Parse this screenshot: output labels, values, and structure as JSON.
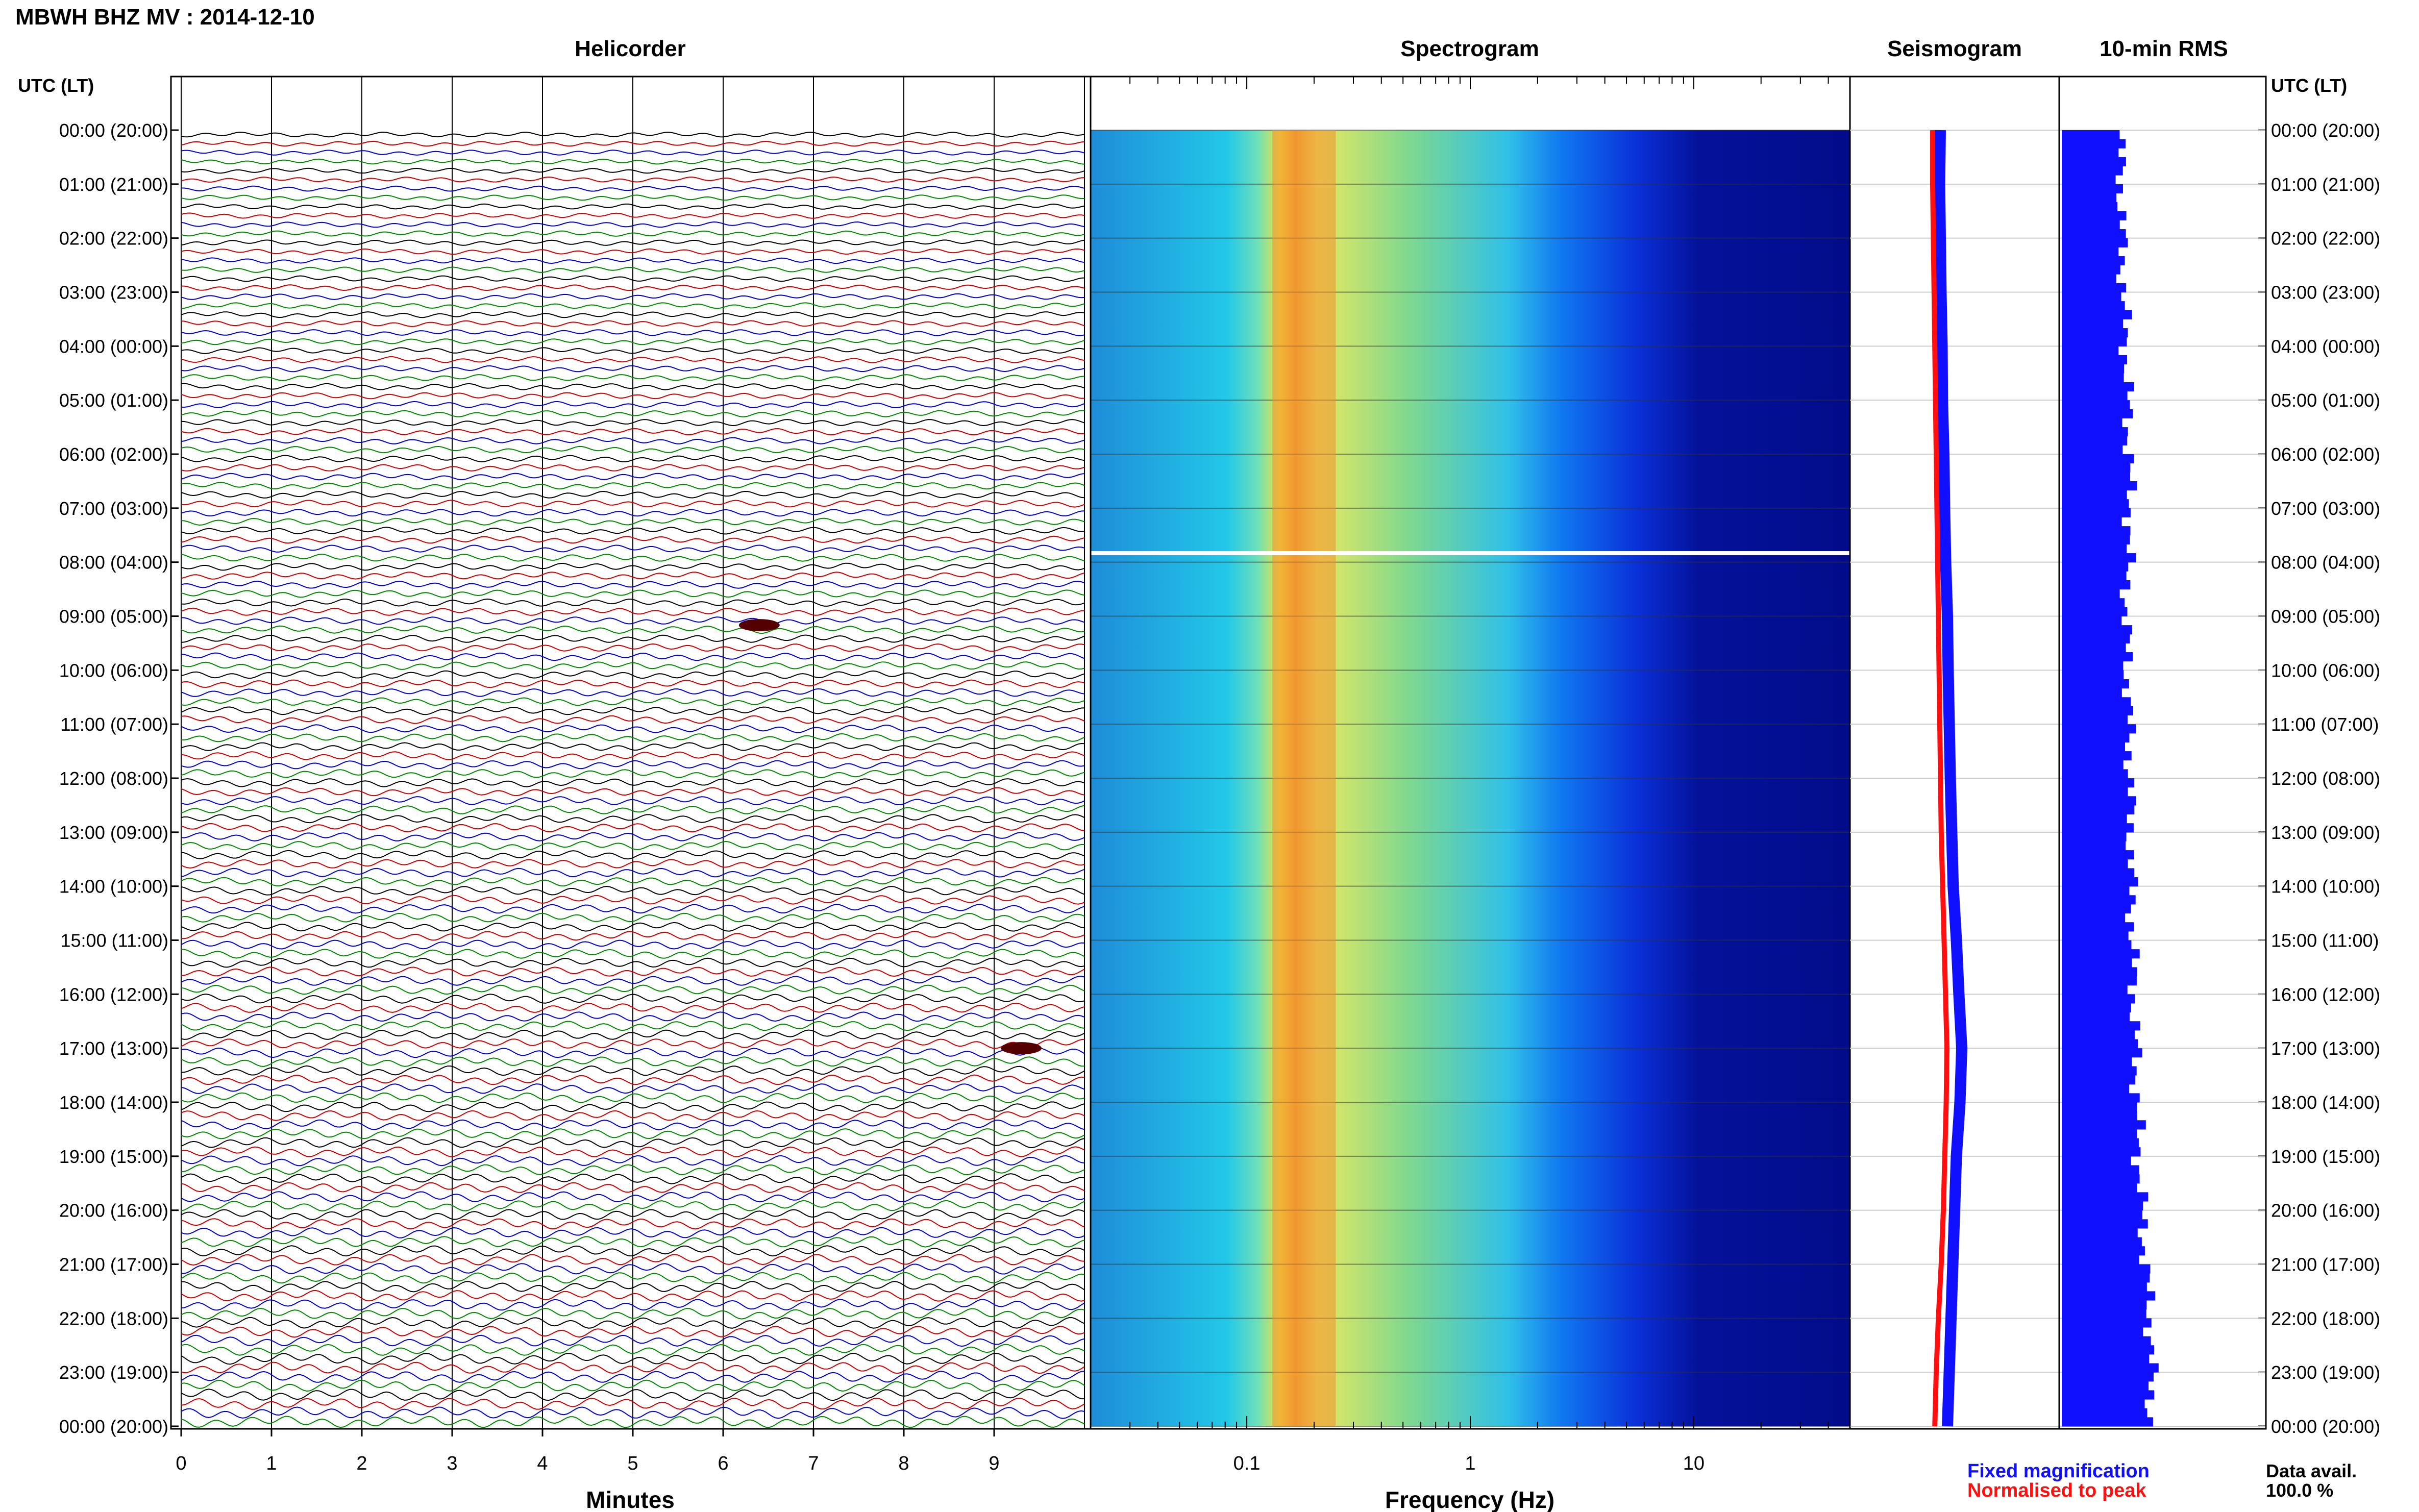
{
  "title": "MBWH BHZ MV : 2014-12-10",
  "panels": {
    "helicorder": "Helicorder",
    "spectrogram": "Spectrogram",
    "seismogram": "Seismogram",
    "rms": "10-min RMS"
  },
  "axis_labels": {
    "left_header": "UTC (LT)",
    "right_header": "UTC (LT)",
    "helicorder_x": "Minutes",
    "spectrogram_x": "Frequency (Hz)"
  },
  "time_ticks": [
    "00:00 (20:00)",
    "01:00 (21:00)",
    "02:00 (22:00)",
    "03:00 (23:00)",
    "04:00 (00:00)",
    "05:00 (01:00)",
    "06:00 (02:00)",
    "07:00 (03:00)",
    "08:00 (04:00)",
    "09:00 (05:00)",
    "10:00 (06:00)",
    "11:00 (07:00)",
    "12:00 (08:00)",
    "13:00 (09:00)",
    "14:00 (10:00)",
    "15:00 (11:00)",
    "16:00 (12:00)",
    "17:00 (13:00)",
    "18:00 (14:00)",
    "19:00 (15:00)",
    "20:00 (16:00)",
    "21:00 (17:00)",
    "22:00 (18:00)",
    "23:00 (19:00)",
    "00:00 (20:00)"
  ],
  "legend": {
    "fixed": "Fixed magnification",
    "normalised": "Normalised to peak",
    "fixed_color": "#1010ff",
    "normalised_color": "#ff1010"
  },
  "data_avail": {
    "label": "Data avail.",
    "value": "100.0 %"
  },
  "trace_colors": [
    "#000000",
    "#cc0000",
    "#0000cc",
    "#008800"
  ],
  "chart_data": [
    {
      "type": "line",
      "name": "helicorder",
      "x_ticks": [
        "0",
        "1",
        "2",
        "3",
        "4",
        "5",
        "6",
        "7",
        "8",
        "9"
      ],
      "xlim": [
        0,
        10
      ],
      "rows": 144,
      "events": [
        {
          "time": "09:10",
          "minute": 6.4
        },
        {
          "time": "17:00",
          "minute": 9.3
        }
      ]
    },
    {
      "type": "heatmap",
      "name": "spectrogram",
      "xscale": "log",
      "x_ticks": [
        "0.1",
        "1",
        "10"
      ],
      "xlim": [
        0.02,
        50
      ],
      "peak_band_hz": [
        0.13,
        0.25
      ],
      "gap_time": "07:50"
    },
    {
      "type": "line",
      "name": "seismogram",
      "series": [
        {
          "values": [
            0.6,
            0.58,
            0.6,
            0.62,
            0.65,
            0.66,
            0.7,
            0.72,
            0.75,
            0.8,
            0.82,
            0.85,
            0.88,
            0.92,
            0.96,
            1.05,
            1.12,
            1.2,
            1.15,
            1.05,
            1.0,
            0.95,
            0.9,
            0.85,
            0.8
          ]
        },
        {
          "values": [
            0.5,
            0.5,
            0.52,
            0.54,
            0.56,
            0.58,
            0.6,
            0.62,
            0.64,
            0.66,
            0.68,
            0.7,
            0.72,
            0.74,
            0.78,
            0.82,
            0.86,
            0.9,
            0.88,
            0.84,
            0.8,
            0.74,
            0.66,
            0.6,
            0.56
          ]
        }
      ]
    },
    {
      "type": "bar",
      "name": "rms",
      "values": [
        0.72,
        0.74,
        0.75,
        0.77,
        0.8,
        0.82,
        0.84,
        0.85,
        0.82,
        0.8,
        0.82,
        0.84,
        0.85,
        0.86,
        0.87,
        0.88,
        0.9,
        0.92,
        0.94,
        0.96,
        1.0,
        1.05,
        1.1,
        1.12,
        1.1
      ],
      "times": [
        "00:00",
        "01:00",
        "02:00",
        "03:00",
        "04:00",
        "05:00",
        "06:00",
        "07:00",
        "08:00",
        "09:00",
        "10:00",
        "11:00",
        "12:00",
        "13:00",
        "14:00",
        "15:00",
        "16:00",
        "17:00",
        "18:00",
        "19:00",
        "20:00",
        "21:00",
        "22:00",
        "23:00",
        "24:00"
      ]
    }
  ]
}
